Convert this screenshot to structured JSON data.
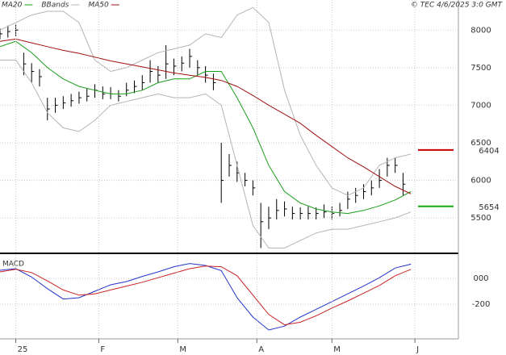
{
  "chart_data": [
    {
      "type": "ohlc",
      "credit": "© TEC 4/6/2025 3:0 GMT",
      "color": "#000000",
      "xlim": [
        0,
        116
      ],
      "ylim": [
        5040,
        8400
      ],
      "yticks": [
        5500,
        6000,
        6500,
        7000,
        7500,
        8000
      ],
      "grid": true,
      "x": [
        0,
        2,
        4,
        6,
        8,
        10,
        12,
        14,
        16,
        18,
        20,
        22,
        24,
        26,
        28,
        30,
        32,
        34,
        36,
        38,
        40,
        42,
        44,
        46,
        48,
        50,
        52,
        54,
        56,
        58,
        60,
        62,
        64,
        66,
        68,
        70,
        72,
        74,
        76,
        78,
        80,
        82,
        84,
        86,
        88,
        90,
        92,
        94,
        96,
        98,
        100,
        102
      ],
      "high": [
        8020,
        8060,
        8080,
        7700,
        7560,
        7480,
        7100,
        7100,
        7120,
        7150,
        7180,
        7220,
        7280,
        7250,
        7240,
        7200,
        7300,
        7330,
        7400,
        7600,
        7520,
        7800,
        7620,
        7650,
        7750,
        7600,
        7520,
        7420,
        6500,
        6350,
        6250,
        6100,
        6000,
        5700,
        5650,
        5750,
        5720,
        5650,
        5640,
        5650,
        5640,
        5680,
        5650,
        5700,
        5850,
        5900,
        5950,
        6000,
        6150,
        6300,
        6300,
        6100
      ],
      "low": [
        7880,
        7900,
        7920,
        7400,
        7300,
        7250,
        6800,
        6900,
        6950,
        6980,
        7020,
        7050,
        7100,
        7080,
        7080,
        7050,
        7120,
        7160,
        7200,
        7300,
        7300,
        7350,
        7400,
        7450,
        7500,
        7400,
        7300,
        7200,
        5700,
        6050,
        5980,
        5920,
        5800,
        5100,
        5350,
        5480,
        5520,
        5480,
        5480,
        5480,
        5480,
        5500,
        5480,
        5520,
        5620,
        5700,
        5750,
        5800,
        5900,
        6050,
        6100,
        5800
      ],
      "close": [
        7950,
        7980,
        8000,
        7550,
        7450,
        7380,
        6950,
        7000,
        7030,
        7060,
        7100,
        7120,
        7200,
        7150,
        7150,
        7120,
        7200,
        7250,
        7300,
        7450,
        7400,
        7550,
        7520,
        7560,
        7650,
        7500,
        7400,
        7300,
        6000,
        6200,
        6100,
        6000,
        5900,
        5450,
        5500,
        5600,
        5620,
        5560,
        5560,
        5560,
        5560,
        5580,
        5560,
        5600,
        5750,
        5800,
        5850,
        5900,
        6000,
        6200,
        6200,
        5950
      ],
      "series": [
        {
          "name": "MA20",
          "color": "#1a9e1a",
          "x": [
            0,
            4,
            8,
            12,
            16,
            20,
            24,
            28,
            32,
            36,
            40,
            44,
            48,
            52,
            56,
            60,
            64,
            68,
            72,
            76,
            80,
            84,
            88,
            92,
            96,
            100,
            104
          ],
          "values": [
            7780,
            7850,
            7700,
            7500,
            7350,
            7250,
            7200,
            7150,
            7150,
            7200,
            7300,
            7350,
            7350,
            7450,
            7450,
            7100,
            6700,
            6200,
            5850,
            5700,
            5620,
            5580,
            5560,
            5600,
            5660,
            5740,
            5850
          ]
        },
        {
          "name": "BBands",
          "color": "#b4b4b4",
          "x": [
            0,
            4,
            8,
            12,
            16,
            20,
            24,
            28,
            32,
            36,
            40,
            44,
            48,
            52,
            56,
            60,
            64,
            68,
            72,
            76,
            80,
            84,
            88,
            92,
            96,
            100,
            104
          ],
          "values": [
            8000,
            8100,
            8200,
            8250,
            8250,
            8100,
            7600,
            7450,
            7500,
            7600,
            7700,
            7750,
            7800,
            7950,
            7900,
            8200,
            8300,
            8100,
            7200,
            6600,
            6200,
            5900,
            5800,
            5900,
            6200,
            6300,
            6350
          ],
          "lower": [
            7600,
            7600,
            7300,
            6900,
            6700,
            6650,
            6800,
            7000,
            7050,
            7100,
            7150,
            7100,
            7100,
            7150,
            7000,
            6200,
            5400,
            5100,
            5100,
            5200,
            5300,
            5350,
            5350,
            5400,
            5450,
            5500,
            5580
          ]
        },
        {
          "name": "MA50",
          "color": "#a01010",
          "x": [
            0,
            4,
            8,
            12,
            16,
            20,
            24,
            28,
            32,
            36,
            40,
            44,
            48,
            52,
            56,
            60,
            64,
            68,
            72,
            76,
            80,
            84,
            88,
            92,
            96,
            100,
            104
          ],
          "values": [
            7850,
            7880,
            7830,
            7780,
            7730,
            7690,
            7640,
            7590,
            7550,
            7510,
            7470,
            7430,
            7400,
            7370,
            7330,
            7250,
            7130,
            7000,
            6880,
            6760,
            6600,
            6450,
            6300,
            6180,
            6050,
            5920,
            5820
          ]
        }
      ],
      "levels": [
        {
          "value": 6404,
          "color": "#cc0000"
        },
        {
          "value": 5654,
          "color": "#11aa11"
        }
      ]
    },
    {
      "type": "line",
      "title": "MACD",
      "xlim": [
        0,
        116
      ],
      "ylim": [
        -469,
        181
      ],
      "yticks": [
        -200,
        {
          "value": 0,
          "label": "000"
        }
      ],
      "grid": true,
      "xticks": [
        {
          "value": 4,
          "label": "25"
        },
        {
          "value": 25,
          "label": "F"
        },
        {
          "value": 45,
          "label": "M"
        },
        {
          "value": 65,
          "label": "A"
        },
        {
          "value": 84,
          "label": "M"
        },
        {
          "value": 105,
          "label": "J"
        }
      ],
      "x": [
        0,
        4,
        8,
        12,
        16,
        20,
        24,
        28,
        32,
        36,
        40,
        44,
        48,
        52,
        56,
        60,
        64,
        68,
        72,
        76,
        80,
        84,
        88,
        92,
        96,
        100,
        104
      ],
      "series": [
        {
          "color": "#2233cc",
          "values": [
            62,
            75,
            10,
            -80,
            -160,
            -150,
            -100,
            -50,
            -25,
            15,
            50,
            90,
            115,
            100,
            60,
            -150,
            -300,
            -400,
            -370,
            -300,
            -240,
            -180,
            -120,
            -60,
            5,
            80,
            110
          ]
        },
        {
          "color": "#cc2222",
          "values": [
            50,
            70,
            45,
            -20,
            -90,
            -130,
            -120,
            -90,
            -60,
            -30,
            5,
            40,
            75,
            95,
            90,
            20,
            -130,
            -280,
            -360,
            -340,
            -290,
            -230,
            -175,
            -115,
            -55,
            20,
            70
          ]
        }
      ]
    }
  ]
}
